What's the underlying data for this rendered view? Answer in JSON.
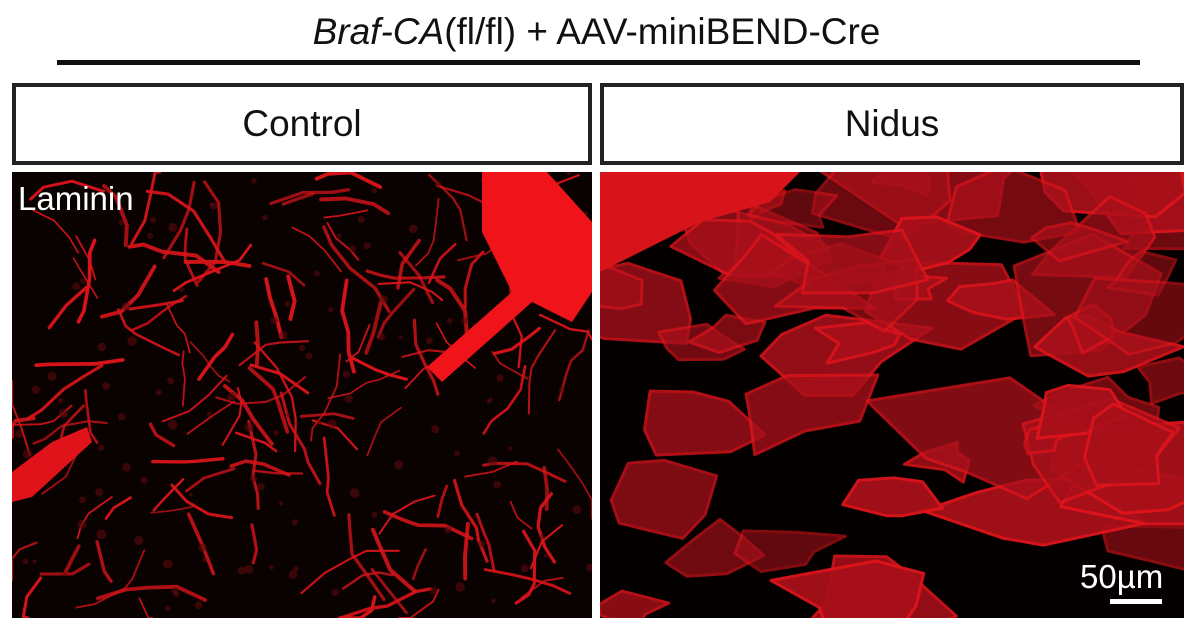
{
  "header": {
    "gene_italic": "Braf-CA",
    "gene_suffix": "(fl/fl) + AAV-miniBEND-Cre"
  },
  "panels": [
    {
      "label": "Control",
      "stain": "Laminin"
    },
    {
      "label": "Nidus",
      "scale_bar_label": "50µm"
    }
  ],
  "colors": {
    "stain": "#e8141a",
    "background": "#000000"
  }
}
